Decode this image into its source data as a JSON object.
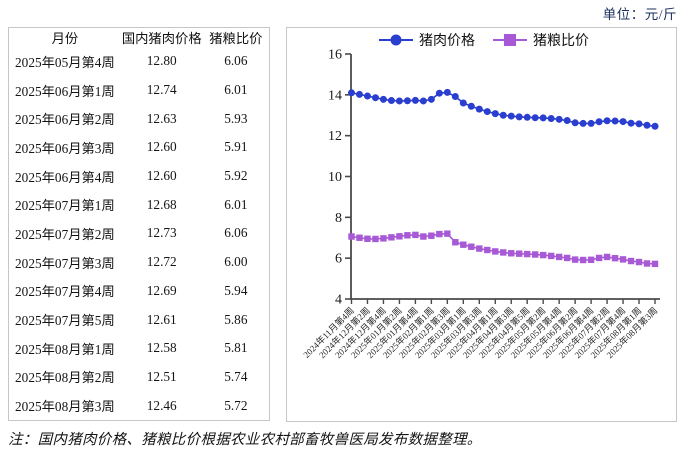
{
  "unit_label": "单位：元/斤",
  "note": "注：国内猪肉价格、猪粮比价根据农业农村部畜牧兽医局发布数据整理。",
  "table": {
    "columns": [
      "月份",
      "国内猪肉价格",
      "猪粮比价"
    ],
    "rows": [
      [
        "2025年05月第4周",
        "12.80",
        "6.06"
      ],
      [
        "2025年06月第1周",
        "12.74",
        "6.01"
      ],
      [
        "2025年06月第2周",
        "12.63",
        "5.93"
      ],
      [
        "2025年06月第3周",
        "12.60",
        "5.91"
      ],
      [
        "2025年06月第4周",
        "12.60",
        "5.92"
      ],
      [
        "2025年07月第1周",
        "12.68",
        "6.01"
      ],
      [
        "2025年07月第2周",
        "12.73",
        "6.06"
      ],
      [
        "2025年07月第3周",
        "12.72",
        "6.00"
      ],
      [
        "2025年07月第4周",
        "12.69",
        "5.94"
      ],
      [
        "2025年07月第5周",
        "12.61",
        "5.86"
      ],
      [
        "2025年08月第1周",
        "12.58",
        "5.81"
      ],
      [
        "2025年08月第2周",
        "12.51",
        "5.74"
      ],
      [
        "2025年08月第3周",
        "12.46",
        "5.72"
      ]
    ]
  },
  "chart_data": {
    "type": "line",
    "title": "",
    "unit": "元/斤",
    "ylim": [
      4,
      16
    ],
    "yticks": [
      4,
      6,
      8,
      10,
      12,
      14,
      16
    ],
    "grid": false,
    "legend_position": "top",
    "x_label_step": 2,
    "x_label_rotation": 45,
    "categories": [
      "2024年11月第4周",
      "2024年12月第1周",
      "2024年12月第2周",
      "2024年12月第3周",
      "2024年12月第4周",
      "2025年01月第1周",
      "2025年01月第2周",
      "2025年01月第3周",
      "2025年01月第4周",
      "2025年01月第5周",
      "2025年02月第1周",
      "2025年02月第2周",
      "2025年02月第3周",
      "2025年02月第4周",
      "2025年03月第1周",
      "2025年03月第2周",
      "2025年03月第3周",
      "2025年03月第4周",
      "2025年04月第1周",
      "2025年04月第2周",
      "2025年04月第3周",
      "2025年04月第4周",
      "2025年04月第5周",
      "2025年05月第1周",
      "2025年05月第2周",
      "2025年05月第3周",
      "2025年05月第4周",
      "2025年06月第1周",
      "2025年06月第2周",
      "2025年06月第3周",
      "2025年06月第4周",
      "2025年07月第1周",
      "2025年07月第2周",
      "2025年07月第3周",
      "2025年07月第4周",
      "2025年07月第5周",
      "2025年08月第1周",
      "2025年08月第2周",
      "2025年08月第3周"
    ],
    "series": [
      {
        "name": "猪肉价格",
        "marker": "circle",
        "color": "#2a3ed0",
        "values": [
          14.1,
          14.02,
          13.94,
          13.86,
          13.78,
          13.72,
          13.7,
          13.71,
          13.73,
          13.7,
          13.78,
          14.08,
          14.12,
          13.92,
          13.6,
          13.44,
          13.3,
          13.18,
          13.08,
          13.0,
          12.96,
          12.92,
          12.9,
          12.88,
          12.87,
          12.84,
          12.8,
          12.74,
          12.63,
          12.6,
          12.6,
          12.68,
          12.73,
          12.72,
          12.69,
          12.61,
          12.58,
          12.51,
          12.46
        ]
      },
      {
        "name": "猪粮比价",
        "marker": "square",
        "color": "#a859d6",
        "values": [
          7.06,
          7.0,
          6.95,
          6.94,
          6.97,
          7.02,
          7.07,
          7.12,
          7.14,
          7.06,
          7.1,
          7.18,
          7.2,
          6.78,
          6.66,
          6.56,
          6.47,
          6.4,
          6.33,
          6.28,
          6.24,
          6.22,
          6.2,
          6.18,
          6.15,
          6.11,
          6.06,
          6.01,
          5.93,
          5.91,
          5.92,
          6.01,
          6.06,
          6.0,
          5.94,
          5.86,
          5.81,
          5.74,
          5.72
        ]
      }
    ]
  },
  "colors": {
    "pork_price_line": "#2a3ed0",
    "grain_ratio_line": "#a859d6",
    "axis": "#4a4a4a",
    "panel_border": "#c6c6c6",
    "unit_text": "#1b2f5e"
  }
}
